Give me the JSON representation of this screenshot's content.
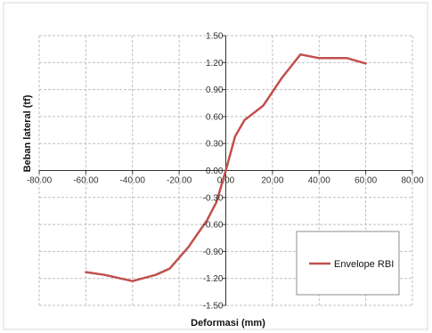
{
  "chart_data": {
    "type": "line",
    "title": "",
    "xlabel": "Deformasi (mm)",
    "ylabel": "Beban lateral (tf)",
    "xlim": [
      -80,
      80
    ],
    "ylim": [
      -1.5,
      1.5
    ],
    "x_ticks": [
      "-80.00",
      "-60.00",
      "-40.00",
      "-20.00",
      "0.00",
      "20.00",
      "40.00",
      "60.00",
      "80.00"
    ],
    "y_ticks": [
      "1.50",
      "1.20",
      "0.90",
      "0.60",
      "0.30",
      "0.00",
      "-0.30",
      "-0.60",
      "-0.90",
      "-1.20",
      "-1.50"
    ],
    "grid": true,
    "legend_position": "bottom-right",
    "series": [
      {
        "name": "Envelope RBI",
        "color": "#c0504d",
        "x": [
          -60,
          -52,
          -40,
          -30,
          -24,
          -16,
          -8,
          -4,
          0,
          4,
          8,
          16,
          24,
          32,
          40,
          52,
          60
        ],
        "y": [
          -1.13,
          -1.16,
          -1.23,
          -1.16,
          -1.09,
          -0.85,
          -0.55,
          -0.35,
          0.0,
          0.38,
          0.56,
          0.72,
          1.03,
          1.29,
          1.25,
          1.25,
          1.19
        ]
      }
    ]
  }
}
